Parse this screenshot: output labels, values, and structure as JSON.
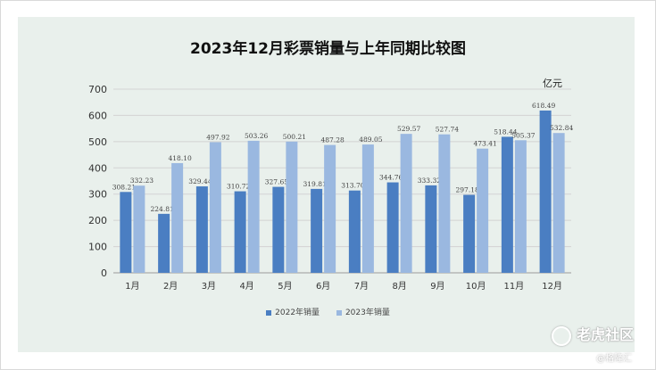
{
  "chart_data": {
    "type": "bar",
    "title": "2023年12月彩票销量与上年同期比较图",
    "unit_label": "亿元",
    "categories": [
      "1月",
      "2月",
      "3月",
      "4月",
      "5月",
      "6月",
      "7月",
      "8月",
      "9月",
      "10月",
      "11月",
      "12月"
    ],
    "series": [
      {
        "name": "2022年销量",
        "color": "#4a7ec2",
        "values": [
          308.21,
          224.81,
          329.44,
          310.72,
          327.65,
          319.81,
          313.7,
          344.76,
          333.32,
          297.18,
          518.44,
          618.49
        ]
      },
      {
        "name": "2023年销量",
        "color": "#9ab8e0",
        "values": [
          332.23,
          418.1,
          497.92,
          503.26,
          500.21,
          487.28,
          489.05,
          529.57,
          527.74,
          473.41,
          505.37,
          532.84
        ]
      }
    ],
    "yticks": [
      0,
      100,
      200,
      300,
      400,
      500,
      600,
      700
    ],
    "ylim": [
      0,
      700
    ],
    "grid": true,
    "legend_position": "bottom"
  },
  "watermark": {
    "main": "老虎社区",
    "sub": "@格隆汇"
  }
}
